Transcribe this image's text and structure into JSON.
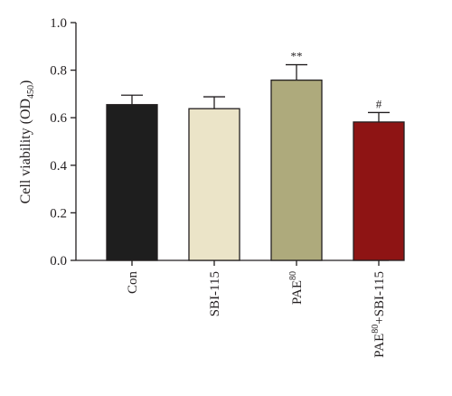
{
  "chart_data": {
    "type": "bar",
    "ylabel_main": "Cell viability (OD",
    "ylabel_sub": "450",
    "ylabel_end": ")",
    "ylim": [
      0.0,
      1.0
    ],
    "yticks": [
      "0.0",
      "0.2",
      "0.4",
      "0.6",
      "0.8",
      "1.0"
    ],
    "grid": false,
    "categories": [
      {
        "label": "Con",
        "sup": "",
        "suffix": ""
      },
      {
        "label": "SBI-115",
        "sup": "",
        "suffix": ""
      },
      {
        "label": "PAE",
        "sup": "80",
        "suffix": ""
      },
      {
        "label": "PAE",
        "sup": "80",
        "suffix": "+SBI-115"
      }
    ],
    "values": [
      0.655,
      0.638,
      0.758,
      0.582
    ],
    "errors": [
      0.04,
      0.05,
      0.065,
      0.04
    ],
    "significance": [
      "",
      "",
      "**",
      "#"
    ],
    "colors": [
      "#1e1e1e",
      "#ebe4c8",
      "#aeaa7c",
      "#8e1414"
    ]
  }
}
